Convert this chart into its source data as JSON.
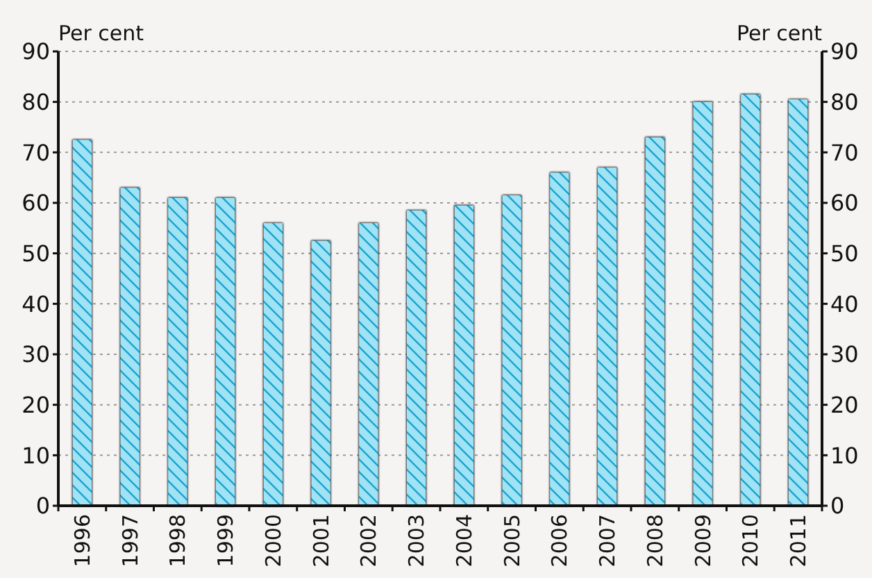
{
  "chart_data": {
    "type": "bar",
    "ylabel": "Per cent",
    "y2label": "Per cent",
    "categories": [
      "1996",
      "1997",
      "1998",
      "1999",
      "2000",
      "2001",
      "2002",
      "2003",
      "2004",
      "2005",
      "2006",
      "2007",
      "2008",
      "2009",
      "2010",
      "2011"
    ],
    "values": [
      72.5,
      63,
      61,
      61,
      56,
      52.5,
      56,
      58.5,
      59.5,
      61.5,
      66,
      67,
      73,
      80,
      81.5,
      80.5
    ],
    "color": "#9fe3f5",
    "ylim": [
      0,
      90
    ],
    "yticks": [
      0,
      10,
      20,
      30,
      40,
      50,
      60,
      70,
      80,
      90
    ],
    "y2lim": [
      0,
      90
    ],
    "y2ticks": [
      0,
      10,
      20,
      30,
      40,
      50,
      60,
      70,
      80,
      90
    ],
    "grid": "y"
  }
}
